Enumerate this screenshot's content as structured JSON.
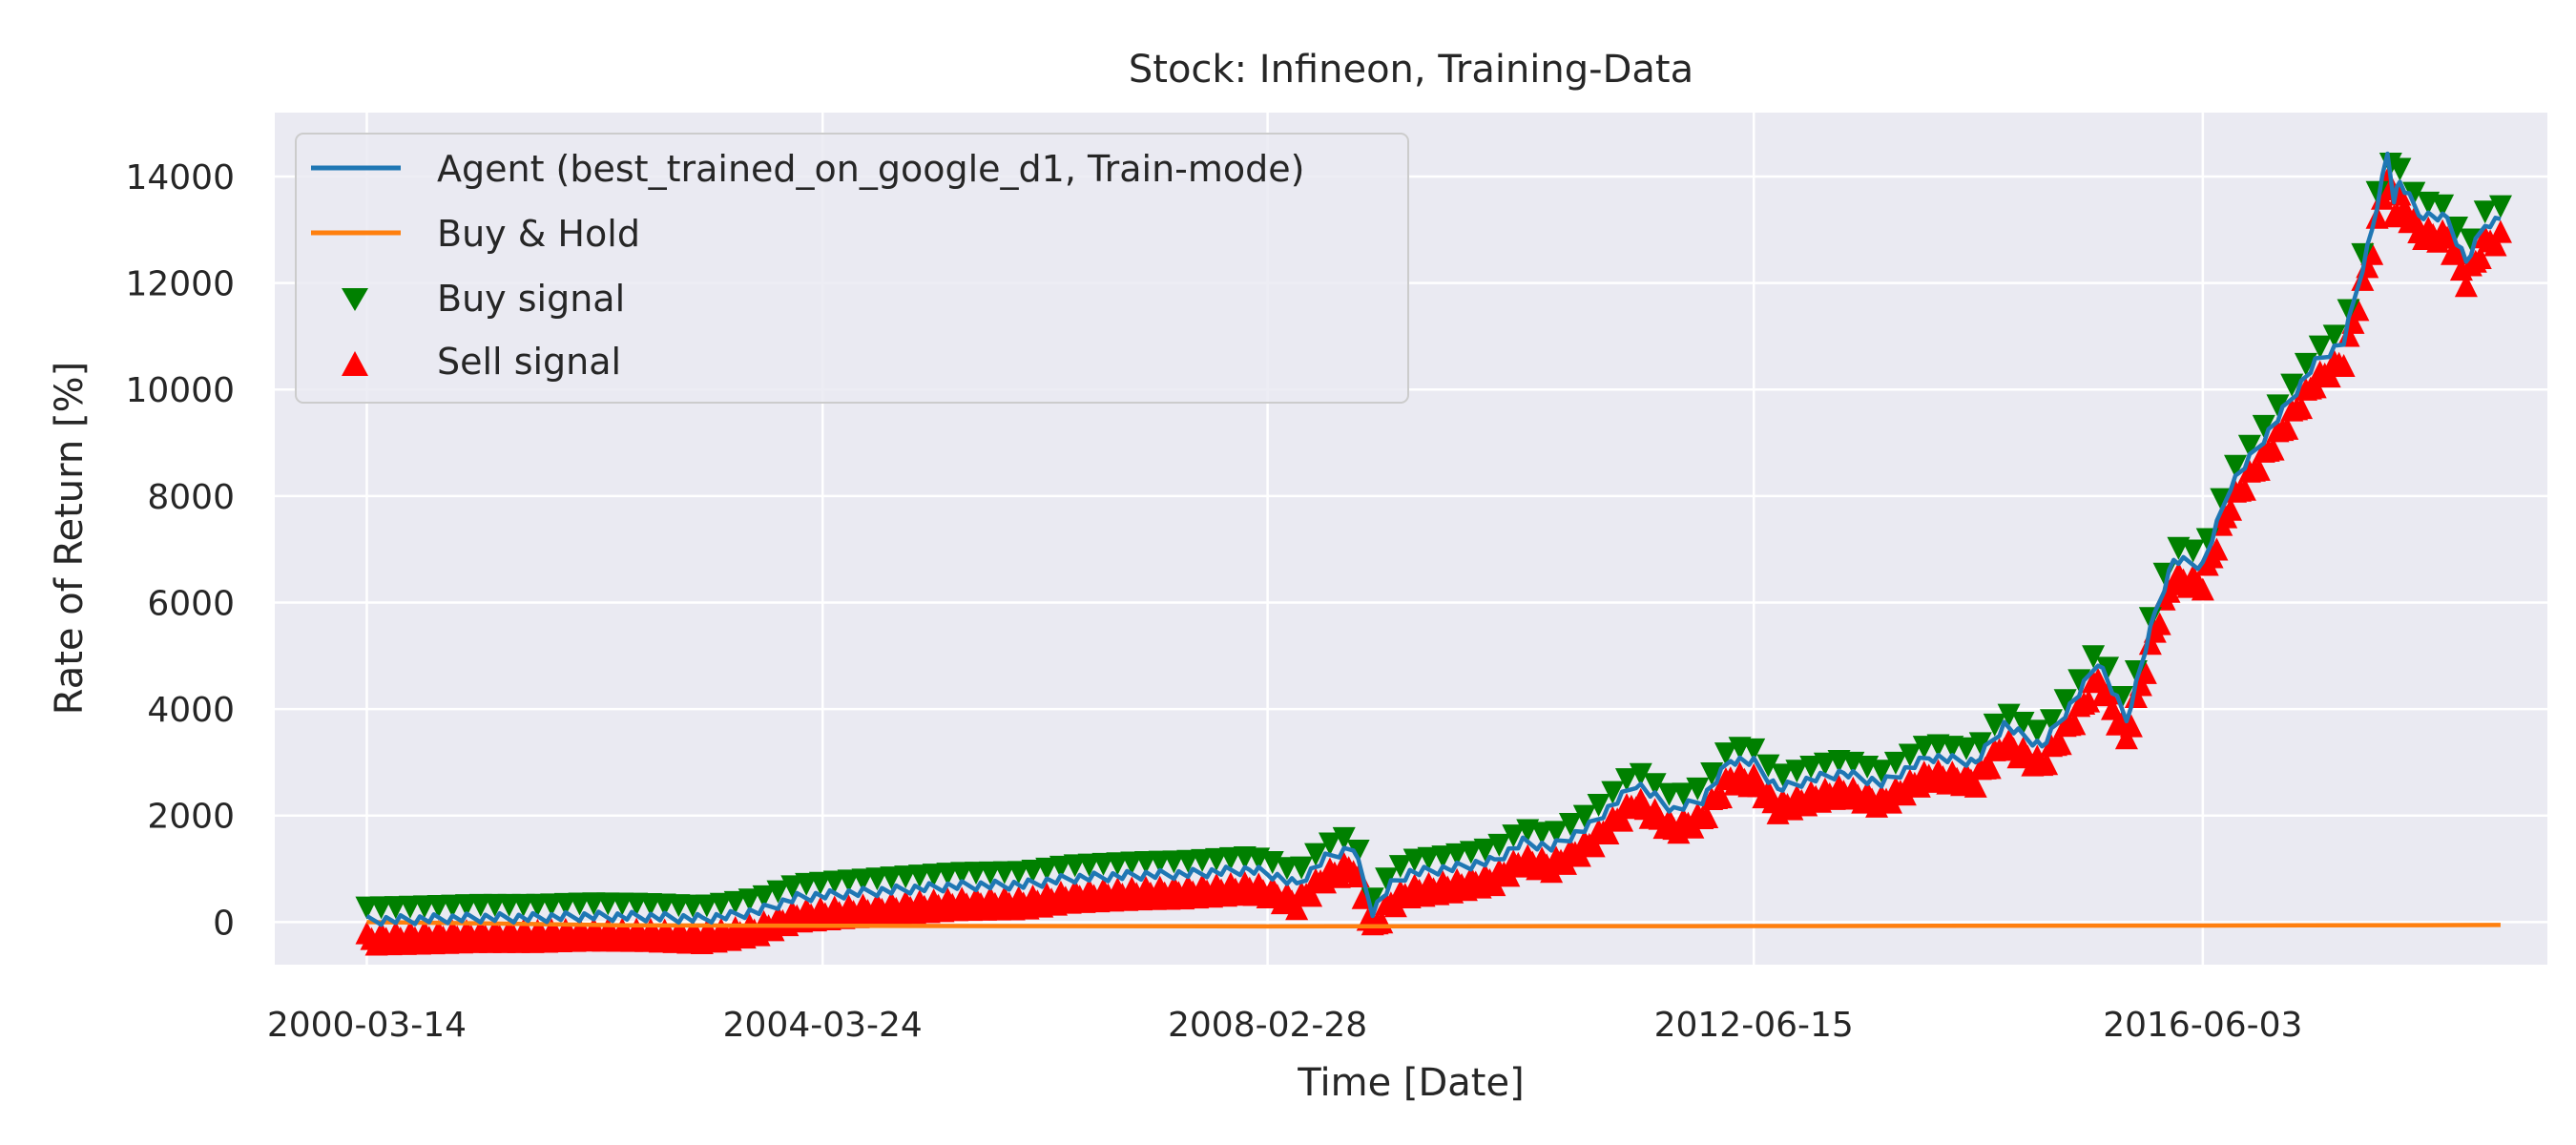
{
  "chart_data": {
    "type": "line",
    "title": "Stock: Infineon, Training-Data",
    "xlabel": "Time [Date]",
    "ylabel": "Rate of Return [%]",
    "x_range": [
      "1999-05-22",
      "2019-06-20"
    ],
    "ylim": [
      -800,
      15200
    ],
    "x_ticks": [
      "2000-03-14",
      "2004-03-24",
      "2008-02-28",
      "2012-06-15",
      "2016-06-03"
    ],
    "y_ticks": [
      0,
      2000,
      4000,
      6000,
      8000,
      10000,
      12000,
      14000
    ],
    "grid": true,
    "legend_position": "top-left",
    "colors": {
      "agent": "#1f77b4",
      "buy_hold": "#ff7f0e",
      "buy_signal": "#008000",
      "sell_signal": "#ff0000",
      "plot_background": "#eaeaf2",
      "grid": "#ffffff"
    },
    "series": [
      {
        "name": "Agent (best_trained_on_google_d1, Train-mode)",
        "kind": "line",
        "x": [
          "2000-03-14",
          "2000-09-01",
          "2001-03-01",
          "2001-09-01",
          "2002-03-01",
          "2002-09-01",
          "2003-03-01",
          "2003-06-01",
          "2003-09-01",
          "2004-01-01",
          "2004-06-01",
          "2005-01-01",
          "2005-06-01",
          "2006-01-01",
          "2006-06-01",
          "2007-01-01",
          "2007-06-01",
          "2008-01-01",
          "2008-02-28",
          "2008-06-01",
          "2008-09-01",
          "2008-12-01",
          "2009-02-01",
          "2009-04-01",
          "2009-06-01",
          "2009-10-01",
          "2010-03-01",
          "2010-06-01",
          "2010-09-01",
          "2011-01-01",
          "2011-06-01",
          "2011-10-01",
          "2012-01-01",
          "2012-04-01",
          "2012-06-15",
          "2012-09-01",
          "2013-01-01",
          "2013-04-01",
          "2013-08-01",
          "2014-01-01",
          "2014-06-01",
          "2014-09-01",
          "2015-01-01",
          "2015-05-01",
          "2015-07-01",
          "2015-10-01",
          "2016-01-01",
          "2016-03-01",
          "2016-06-03",
          "2016-09-01",
          "2017-01-01",
          "2017-06-01",
          "2017-09-01",
          "2017-12-01",
          "2018-01-20",
          "2018-02-10",
          "2018-03-01",
          "2018-05-01",
          "2018-08-01",
          "2018-10-01",
          "2018-12-01",
          "2019-01-20"
        ],
        "y": [
          30,
          50,
          80,
          80,
          110,
          100,
          60,
          120,
          210,
          460,
          530,
          620,
          680,
          700,
          820,
          880,
          900,
          980,
          920,
          700,
          1200,
          1400,
          200,
          700,
          920,
          1000,
          1150,
          1500,
          1400,
          1800,
          2600,
          2100,
          2300,
          3050,
          3000,
          2500,
          2700,
          2800,
          2600,
          3100,
          3000,
          3700,
          3300,
          4300,
          4900,
          3800,
          5800,
          6800,
          6700,
          8200,
          9200,
          10500,
          10900,
          13000,
          14400,
          13600,
          13900,
          13300,
          13200,
          12400,
          13100,
          13200
        ]
      },
      {
        "name": "Buy & Hold",
        "kind": "line",
        "x": [
          "2000-03-14",
          "2001-06-01",
          "2002-06-01",
          "2004-03-24",
          "2008-02-28",
          "2012-06-15",
          "2016-06-03",
          "2019-01-20"
        ],
        "y": [
          0,
          -30,
          -60,
          -70,
          -80,
          -75,
          -65,
          -55
        ]
      },
      {
        "name": "Buy signal",
        "kind": "scatter",
        "marker": "triangle-down"
      },
      {
        "name": "Sell signal",
        "kind": "scatter",
        "marker": "triangle-up"
      }
    ]
  }
}
